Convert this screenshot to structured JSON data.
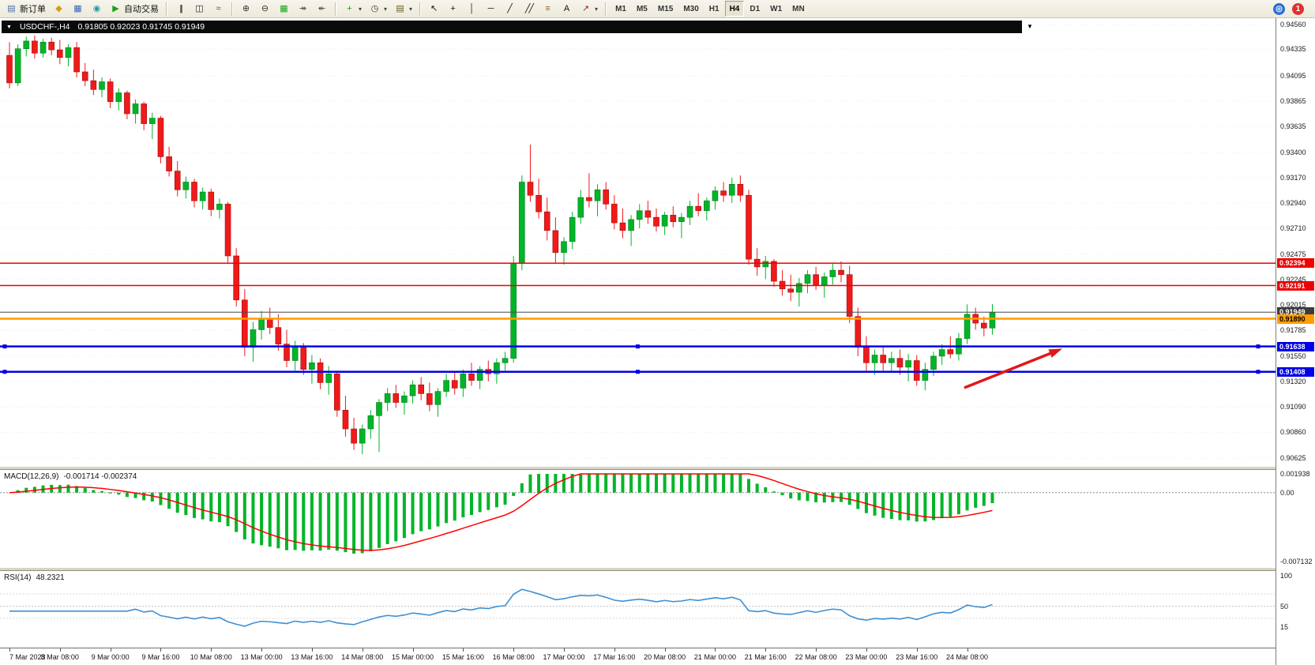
{
  "toolbar": {
    "items": [
      {
        "t": "btn",
        "name": "new-order",
        "glyph": "▤",
        "gc": "#4a6da8",
        "label": "新订单"
      },
      {
        "t": "btn",
        "name": "market-watch",
        "glyph": "◆",
        "gc": "#d49a17"
      },
      {
        "t": "btn",
        "name": "data-window",
        "glyph": "▦",
        "gc": "#3a62b0"
      },
      {
        "t": "btn",
        "name": "navigator",
        "glyph": "◉",
        "gc": "#1f9ba6"
      },
      {
        "t": "btn",
        "name": "auto-trading",
        "glyph": "▶",
        "gc": "#18a018",
        "label": "自动交易"
      },
      {
        "t": "sep"
      },
      {
        "t": "btn",
        "name": "bar-chart-mode",
        "glyph": "|||",
        "gc": "#555533"
      },
      {
        "t": "btn",
        "name": "candlestick-mode",
        "glyph": "◫",
        "gc": "#222222"
      },
      {
        "t": "btn",
        "name": "line-chart-mode",
        "glyph": "≈",
        "gc": "#335577"
      },
      {
        "t": "sep"
      },
      {
        "t": "btn",
        "name": "zoom-in",
        "glyph": "⊕",
        "gc": "#333333"
      },
      {
        "t": "btn",
        "name": "zoom-out",
        "glyph": "⊖",
        "gc": "#333333"
      },
      {
        "t": "btn",
        "name": "tile-windows",
        "glyph": "▦",
        "gc": "#18a018"
      },
      {
        "t": "btn",
        "name": "auto-scroll",
        "glyph": "↠",
        "gc": "#444444"
      },
      {
        "t": "btn",
        "name": "chart-shift",
        "glyph": "↞",
        "gc": "#444444"
      },
      {
        "t": "sep"
      },
      {
        "t": "btn",
        "name": "indicators",
        "glyph": "+",
        "gc": "#18a018",
        "dd": true
      },
      {
        "t": "btn",
        "name": "periods",
        "glyph": "◷",
        "gc": "#333333",
        "dd": true
      },
      {
        "t": "btn",
        "name": "templates",
        "glyph": "▤",
        "gc": "#6a5a20",
        "dd": true
      },
      {
        "t": "sep"
      },
      {
        "t": "btn",
        "name": "cursor-tool",
        "glyph": "↖",
        "gc": "#111111"
      },
      {
        "t": "btn",
        "name": "crosshair-tool",
        "glyph": "+",
        "gc": "#111111"
      },
      {
        "t": "btn",
        "name": "vertical-line-tool",
        "glyph": "│",
        "gc": "#111111"
      },
      {
        "t": "btn",
        "name": "horizontal-line-tool",
        "glyph": "─",
        "gc": "#111111"
      },
      {
        "t": "btn",
        "name": "trendline-tool",
        "glyph": "╱",
        "gc": "#111111"
      },
      {
        "t": "btn",
        "name": "channel-tool",
        "glyph": "╱╱",
        "gc": "#111111"
      },
      {
        "t": "btn",
        "name": "fibonacci-tool",
        "glyph": "≡",
        "gc": "#8a6a1a"
      },
      {
        "t": "btn",
        "name": "text-tool",
        "glyph": "A",
        "gc": "#111111"
      },
      {
        "t": "btn",
        "name": "arrows-tool",
        "glyph": "↗",
        "gc": "#aa2222",
        "dd": true
      },
      {
        "t": "sep"
      },
      {
        "t": "tf"
      },
      {
        "t": "spacer"
      },
      {
        "t": "btn",
        "name": "community",
        "glyph": "◎",
        "gc": "#ffffff",
        "bg": "#2a6fd6",
        "round": true
      },
      {
        "t": "btn",
        "name": "notifications",
        "glyph": "1",
        "gc": "#ffffff",
        "bg": "#e03030",
        "round": true
      }
    ],
    "timeframes": [
      "M1",
      "M5",
      "M15",
      "M30",
      "H1",
      "H4",
      "D1",
      "W1",
      "MN"
    ],
    "active_timeframe": "H4"
  },
  "chart": {
    "title": "USDCHF-,H4",
    "ohlc": "0.91805 0.92023 0.91745 0.91949"
  },
  "chart_data": [
    {
      "type": "candlestick",
      "symbol": "USDCHF-",
      "timeframe": "H4",
      "up_color": "#00b527",
      "down_color": "#ef1a1a",
      "up_border": "#0a7a20",
      "down_border": "#9e0e0e",
      "ylim": [
        0.90625,
        0.9456
      ],
      "y_axis_labels": [
        "0.94560",
        "0.94335",
        "0.94095",
        "0.93865",
        "0.93635",
        "0.93400",
        "0.93170",
        "0.92940",
        "0.92710",
        "0.92475",
        "0.92245",
        "0.92015",
        "0.91785",
        "0.91550",
        "0.91320",
        "0.91090",
        "0.90860",
        "0.90625"
      ],
      "x_labels": [
        "7 Mar 2023",
        "8 Mar 08:00",
        "9 Mar 00:00",
        "9 Mar 16:00",
        "10 Mar 08:00",
        "13 Mar 00:00",
        "13 Mar 16:00",
        "14 Mar 08:00",
        "15 Mar 00:00",
        "15 Mar 16:00",
        "16 Mar 08:00",
        "17 Mar 00:00",
        "17 Mar 16:00",
        "20 Mar 08:00",
        "21 Mar 00:00",
        "21 Mar 16:00",
        "22 Mar 08:00",
        "23 Mar 00:00",
        "23 Mar 16:00",
        "24 Mar 08:00"
      ],
      "hlines": [
        {
          "name": "resistance-line-1",
          "price": 0.92394,
          "label": "0.92394",
          "color": "#f00000",
          "width": 1.5,
          "badge": true
        },
        {
          "name": "resistance-line-2",
          "price": 0.92191,
          "label": "0.92191",
          "color": "#f00000",
          "width": 1.5,
          "badge": true
        },
        {
          "name": "bid-price-line",
          "price": 0.91949,
          "label": "0.91949",
          "color": "#4a4a4a",
          "width": 1,
          "badge": true,
          "badge_color": "#3c3c3c"
        },
        {
          "name": "pivot-line-orange",
          "price": 0.9189,
          "label": "0.91890",
          "color": "#ff9c00",
          "width": 2.5,
          "badge": true,
          "badge_text_color": "#000000"
        },
        {
          "name": "support-line-1",
          "price": 0.91638,
          "label": "0.91638",
          "color": "#0000e8",
          "width": 2.5,
          "badge": true,
          "handles": true
        },
        {
          "name": "support-line-2",
          "price": 0.91408,
          "label": "0.91408",
          "color": "#0000e8",
          "width": 2.5,
          "badge": true,
          "handles": true
        }
      ],
      "arrow": {
        "x1_frac": 0.756,
        "price1": 0.91263,
        "x2_frac": 0.83,
        "price2": 0.91605,
        "color": "#e01818"
      },
      "candles": [
        [
          0.9428,
          0.944,
          0.9398,
          0.9403
        ],
        [
          0.9403,
          0.9438,
          0.94,
          0.9434
        ],
        [
          0.9434,
          0.9445,
          0.9427,
          0.9441
        ],
        [
          0.9441,
          0.9446,
          0.9425,
          0.943
        ],
        [
          0.943,
          0.9443,
          0.9426,
          0.944
        ],
        [
          0.944,
          0.9444,
          0.9428,
          0.9433
        ],
        [
          0.9433,
          0.9442,
          0.942,
          0.9426
        ],
        [
          0.9426,
          0.9438,
          0.9418,
          0.9435
        ],
        [
          0.9435,
          0.944,
          0.9408,
          0.9413
        ],
        [
          0.9413,
          0.9421,
          0.94,
          0.9405
        ],
        [
          0.9405,
          0.9415,
          0.9392,
          0.9397
        ],
        [
          0.9397,
          0.9408,
          0.939,
          0.9404
        ],
        [
          0.9404,
          0.9407,
          0.938,
          0.9386
        ],
        [
          0.9386,
          0.9398,
          0.9378,
          0.9394
        ],
        [
          0.9394,
          0.9396,
          0.937,
          0.9375
        ],
        [
          0.9375,
          0.9388,
          0.9366,
          0.9384
        ],
        [
          0.9384,
          0.9386,
          0.936,
          0.9366
        ],
        [
          0.9366,
          0.9376,
          0.9352,
          0.9371
        ],
        [
          0.9371,
          0.9373,
          0.933,
          0.9336
        ],
        [
          0.9336,
          0.9345,
          0.9318,
          0.9323
        ],
        [
          0.9323,
          0.9332,
          0.93,
          0.9306
        ],
        [
          0.9306,
          0.9318,
          0.9298,
          0.9313
        ],
        [
          0.9313,
          0.9316,
          0.929,
          0.9296
        ],
        [
          0.9296,
          0.9308,
          0.9288,
          0.9304
        ],
        [
          0.9304,
          0.9307,
          0.9282,
          0.9288
        ],
        [
          0.9288,
          0.9298,
          0.928,
          0.9293
        ],
        [
          0.9293,
          0.9295,
          0.924,
          0.9246
        ],
        [
          0.9246,
          0.9253,
          0.92,
          0.9206
        ],
        [
          0.9206,
          0.9216,
          0.9155,
          0.9163
        ],
        [
          0.9163,
          0.9186,
          0.915,
          0.9179
        ],
        [
          0.9179,
          0.9196,
          0.917,
          0.9189
        ],
        [
          0.9189,
          0.9199,
          0.9175,
          0.9181
        ],
        [
          0.9181,
          0.9193,
          0.916,
          0.9166
        ],
        [
          0.9166,
          0.9179,
          0.9145,
          0.9151
        ],
        [
          0.9151,
          0.9169,
          0.9142,
          0.9163
        ],
        [
          0.9163,
          0.9167,
          0.9138,
          0.9143
        ],
        [
          0.9143,
          0.9156,
          0.913,
          0.9149
        ],
        [
          0.9149,
          0.9153,
          0.9125,
          0.9131
        ],
        [
          0.9131,
          0.9146,
          0.912,
          0.9139
        ],
        [
          0.9139,
          0.9141,
          0.91,
          0.9106
        ],
        [
          0.9106,
          0.9119,
          0.9082,
          0.9089
        ],
        [
          0.9089,
          0.9099,
          0.907,
          0.9076
        ],
        [
          0.9076,
          0.9093,
          0.9066,
          0.9089
        ],
        [
          0.9089,
          0.9106,
          0.908,
          0.9101
        ],
        [
          0.9101,
          0.9116,
          0.9068,
          0.9113
        ],
        [
          0.9113,
          0.9126,
          0.9105,
          0.9121
        ],
        [
          0.9121,
          0.9129,
          0.9108,
          0.9113
        ],
        [
          0.9113,
          0.9123,
          0.9102,
          0.9119
        ],
        [
          0.9119,
          0.9133,
          0.9112,
          0.9129
        ],
        [
          0.9129,
          0.9136,
          0.9115,
          0.9121
        ],
        [
          0.9121,
          0.9131,
          0.9105,
          0.9111
        ],
        [
          0.9111,
          0.9126,
          0.91,
          0.9123
        ],
        [
          0.9123,
          0.9139,
          0.9118,
          0.9133
        ],
        [
          0.9133,
          0.9141,
          0.912,
          0.9126
        ],
        [
          0.9126,
          0.9143,
          0.9118,
          0.9139
        ],
        [
          0.9139,
          0.9149,
          0.9128,
          0.9133
        ],
        [
          0.9133,
          0.9146,
          0.9125,
          0.9143
        ],
        [
          0.9143,
          0.9151,
          0.9132,
          0.9139
        ],
        [
          0.9139,
          0.9153,
          0.913,
          0.9149
        ],
        [
          0.9149,
          0.9159,
          0.9142,
          0.9153
        ],
        [
          0.9153,
          0.9246,
          0.9149,
          0.9239
        ],
        [
          0.9239,
          0.9319,
          0.9233,
          0.9313
        ],
        [
          0.9313,
          0.9347,
          0.9295,
          0.9301
        ],
        [
          0.9301,
          0.9316,
          0.928,
          0.9286
        ],
        [
          0.9286,
          0.9299,
          0.926,
          0.9269
        ],
        [
          0.9269,
          0.9281,
          0.924,
          0.9249
        ],
        [
          0.9249,
          0.9263,
          0.9238,
          0.9259
        ],
        [
          0.9259,
          0.9286,
          0.9252,
          0.9281
        ],
        [
          0.9281,
          0.9306,
          0.9275,
          0.9299
        ],
        [
          0.9299,
          0.9321,
          0.929,
          0.9296
        ],
        [
          0.9296,
          0.9311,
          0.9282,
          0.9306
        ],
        [
          0.9306,
          0.9313,
          0.9288,
          0.9293
        ],
        [
          0.9293,
          0.9301,
          0.927,
          0.9276
        ],
        [
          0.9276,
          0.9289,
          0.9262,
          0.9269
        ],
        [
          0.9269,
          0.9283,
          0.9255,
          0.9279
        ],
        [
          0.9279,
          0.9293,
          0.9271,
          0.9287
        ],
        [
          0.9287,
          0.9296,
          0.9275,
          0.9281
        ],
        [
          0.9281,
          0.9289,
          0.9268,
          0.9273
        ],
        [
          0.9273,
          0.9286,
          0.9265,
          0.9283
        ],
        [
          0.9283,
          0.9291,
          0.9272,
          0.9277
        ],
        [
          0.9277,
          0.9285,
          0.9262,
          0.9281
        ],
        [
          0.9281,
          0.9296,
          0.9274,
          0.9291
        ],
        [
          0.9291,
          0.9303,
          0.9282,
          0.9287
        ],
        [
          0.9287,
          0.9299,
          0.9278,
          0.9296
        ],
        [
          0.9296,
          0.9309,
          0.9288,
          0.9305
        ],
        [
          0.9305,
          0.9313,
          0.9295,
          0.9301
        ],
        [
          0.9301,
          0.9317,
          0.9294,
          0.9311
        ],
        [
          0.9311,
          0.9319,
          0.9295,
          0.9301
        ],
        [
          0.9301,
          0.9306,
          0.9238,
          0.9243
        ],
        [
          0.9243,
          0.9253,
          0.9228,
          0.9236
        ],
        [
          0.9236,
          0.9246,
          0.9225,
          0.9241
        ],
        [
          0.9241,
          0.9243,
          0.9218,
          0.9223
        ],
        [
          0.9223,
          0.9233,
          0.921,
          0.9216
        ],
        [
          0.9216,
          0.9229,
          0.9205,
          0.9213
        ],
        [
          0.9213,
          0.9226,
          0.92,
          0.9221
        ],
        [
          0.9221,
          0.9233,
          0.9212,
          0.9229
        ],
        [
          0.9229,
          0.9236,
          0.9215,
          0.9219
        ],
        [
          0.9219,
          0.9231,
          0.9208,
          0.9227
        ],
        [
          0.9227,
          0.9239,
          0.922,
          0.9233
        ],
        [
          0.9233,
          0.9241,
          0.9222,
          0.9229
        ],
        [
          0.9229,
          0.9237,
          0.9185,
          0.9191
        ],
        [
          0.9191,
          0.9199,
          0.9155,
          0.9163
        ],
        [
          0.9163,
          0.9173,
          0.914,
          0.9149
        ],
        [
          0.9149,
          0.9161,
          0.9138,
          0.9156
        ],
        [
          0.9156,
          0.9163,
          0.9142,
          0.9149
        ],
        [
          0.9149,
          0.9159,
          0.914,
          0.9153
        ],
        [
          0.9153,
          0.9161,
          0.9138,
          0.9145
        ],
        [
          0.9145,
          0.9157,
          0.9132,
          0.9151
        ],
        [
          0.9151,
          0.9156,
          0.9128,
          0.9133
        ],
        [
          0.9133,
          0.9149,
          0.9124,
          0.9143
        ],
        [
          0.9143,
          0.9159,
          0.9137,
          0.9155
        ],
        [
          0.9155,
          0.9166,
          0.9147,
          0.9161
        ],
        [
          0.9161,
          0.9173,
          0.9153,
          0.9157
        ],
        [
          0.9157,
          0.9176,
          0.9151,
          0.9171
        ],
        [
          0.9171,
          0.9202,
          0.9166,
          0.9193
        ],
        [
          0.9193,
          0.9199,
          0.9179,
          0.9185
        ],
        [
          0.9185,
          0.9191,
          0.9173,
          0.91805
        ],
        [
          0.91805,
          0.92023,
          0.91745,
          0.91949
        ]
      ]
    },
    {
      "type": "macd",
      "label": "MACD(12,26,9)",
      "values_text": "-0.001714 -0.002374",
      "fast": 12,
      "slow": 26,
      "signal": 9,
      "y_labels": [
        "0.001938",
        "0.00",
        "-0.007132"
      ],
      "ylim": [
        -0.007132,
        0.001938
      ],
      "hist_color": "#00b527",
      "signal_color": "#ff0000"
    },
    {
      "type": "rsi",
      "label": "RSI(14)",
      "value_text": "48.2321",
      "period": 14,
      "y_labels": [
        "100",
        "50",
        "15"
      ],
      "levels": [
        70,
        50,
        30
      ],
      "ylim": [
        0,
        100
      ],
      "line_color": "#3f8fd2"
    }
  ]
}
